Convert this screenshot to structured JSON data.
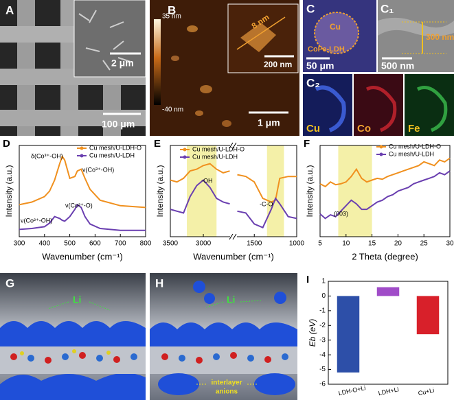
{
  "panels": {
    "A": {
      "label": "A",
      "inset_scale": "2 μm",
      "scale": "100 μm"
    },
    "B": {
      "label": "B",
      "colorbar_max": "35 nm",
      "colorbar_min": "-40 nm",
      "inset_height": "8 nm",
      "inset_scale": "200 nm",
      "scale": "1 μm"
    },
    "C": {
      "label": "C",
      "core": "Cu",
      "shell": "CoFe-LDH",
      "scale": "50 μm"
    },
    "C1": {
      "label": "C₁",
      "thickness": "300 nm",
      "scale": "500 nm"
    },
    "C2": {
      "label": "C₂",
      "maps": [
        "Cu",
        "Co",
        "Fe"
      ]
    },
    "G": {
      "label": "G",
      "ion": "Li"
    },
    "H": {
      "label": "H",
      "ion": "Li",
      "anions": [
        "interlayer",
        "anions"
      ]
    }
  },
  "chart_data": [
    {
      "type": "line",
      "label": "D",
      "xlabel": "Wavenumber (cm⁻¹)",
      "ylabel": "Intensity (a.u.)",
      "x": [
        300,
        350,
        400,
        420,
        440,
        460,
        470,
        480,
        500,
        520,
        530,
        545,
        560,
        580,
        620,
        700,
        800
      ],
      "xlim": [
        300,
        800
      ],
      "xticks": [
        300,
        400,
        500,
        600,
        700,
        800
      ],
      "ylim": [
        0,
        100
      ],
      "series": [
        {
          "name": "Cu mesh/U-LDH-O",
          "color": "#f0901e",
          "values": [
            35,
            38,
            44,
            50,
            62,
            80,
            88,
            84,
            64,
            66,
            72,
            74,
            64,
            52,
            40,
            34,
            32
          ]
        },
        {
          "name": "Cu mesh/U-LDH",
          "color": "#6a3fb0",
          "values": [
            8,
            9,
            11,
            15,
            22,
            20,
            18,
            17,
            22,
            30,
            35,
            32,
            22,
            14,
            9,
            7,
            7
          ]
        }
      ],
      "annotations": [
        "δ(Co³⁺-OH)",
        "ν(Co³⁺-OH)",
        "ν(Co²⁺-O)",
        "ν(Co²⁺-OH)"
      ]
    },
    {
      "type": "line",
      "label": "E",
      "xlabel": "Wavenumber (cm⁻¹)",
      "ylabel": "Intensity (a.u.)",
      "x": [
        3500,
        3400,
        3300,
        3200,
        3100,
        3000,
        2900,
        2800,
        2700,
        2600,
        2150,
        1700,
        1600,
        1500,
        1400,
        1300,
        1250,
        1200,
        1100,
        1000
      ],
      "xlim": [
        3500,
        1000
      ],
      "xbreak": [
        2600,
        1700
      ],
      "xticks": [
        3500,
        3000,
        1500,
        1000
      ],
      "ylim": [
        0,
        100
      ],
      "highlights": [
        [
          3250,
          2800
        ],
        [
          1350,
          1150
        ]
      ],
      "series": [
        {
          "name": "Cu mesh/U-LDH-O",
          "color": "#f0901e",
          "values": [
            62,
            60,
            64,
            72,
            74,
            78,
            80,
            74,
            70,
            72,
            null,
            68,
            66,
            60,
            42,
            38,
            40,
            64,
            66,
            66
          ]
        },
        {
          "name": "Cu mesh/U-LDH",
          "color": "#6a3fb0",
          "values": [
            30,
            28,
            26,
            44,
            56,
            62,
            54,
            42,
            38,
            36,
            null,
            28,
            26,
            14,
            10,
            30,
            42,
            36,
            22,
            20
          ]
        }
      ],
      "annotations": [
        "-OH",
        "-C-O"
      ]
    },
    {
      "type": "line",
      "label": "F",
      "xlabel": "2 Theta (degree)",
      "ylabel": "Intensity (a.u.)",
      "x": [
        5,
        6,
        7,
        8,
        9,
        10,
        11,
        12,
        13,
        14,
        15,
        16,
        17,
        18,
        19,
        20,
        21,
        22,
        23,
        24,
        25,
        26,
        27,
        28,
        29,
        30
      ],
      "xlim": [
        5,
        30
      ],
      "xticks": [
        5,
        10,
        15,
        20,
        25,
        30
      ],
      "ylim": [
        0,
        100
      ],
      "highlights": [
        [
          8.5,
          15
        ]
      ],
      "series": [
        {
          "name": "Cu mesh/U-LDH-O",
          "color": "#f0901e",
          "values": [
            58,
            55,
            60,
            57,
            58,
            60,
            66,
            74,
            64,
            60,
            62,
            64,
            63,
            66,
            68,
            70,
            72,
            74,
            76,
            78,
            82,
            80,
            78,
            84,
            82,
            86
          ]
        },
        {
          "name": "Cu mesh/U-LDH",
          "color": "#6a3fb0",
          "values": [
            25,
            20,
            24,
            22,
            28,
            34,
            40,
            36,
            30,
            30,
            34,
            38,
            40,
            44,
            46,
            50,
            52,
            54,
            58,
            60,
            62,
            64,
            66,
            70,
            68,
            72
          ]
        }
      ],
      "annotations": [
        "(003)"
      ]
    },
    {
      "type": "bar",
      "label": "I",
      "ylabel": "Eb (eV)",
      "categories": [
        "LDH-O+Li",
        "LDH+Li",
        "Cu+Li"
      ],
      "values": [
        -5.2,
        0.6,
        -2.6
      ],
      "colors": [
        "#2d4fa8",
        "#a04cc8",
        "#d8202a"
      ],
      "ylim": [
        -6,
        1
      ],
      "yticks": [
        -6,
        -5,
        -4,
        -3,
        -2,
        -1,
        0,
        1
      ]
    }
  ]
}
